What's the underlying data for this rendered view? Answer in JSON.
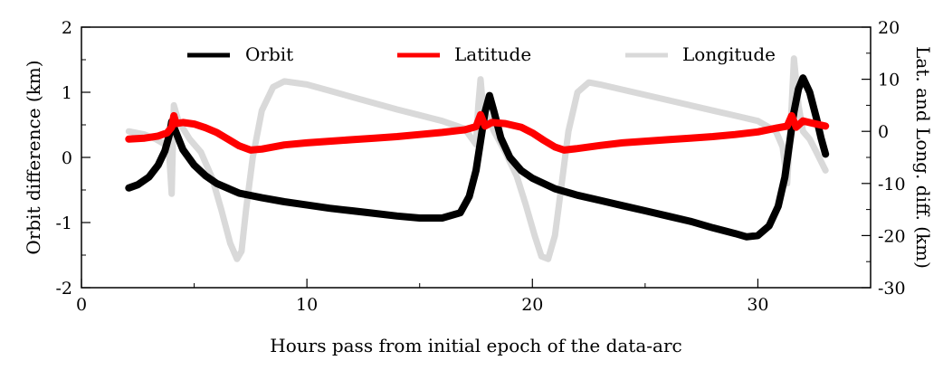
{
  "chart_data": {
    "type": "line",
    "xlabel": "Hours pass from initial epoch of the data-arc",
    "ylabel_left": "Orbit difference (km)",
    "ylabel_right": "Lat. and Long. diff. (km)",
    "xlim": [
      0,
      35
    ],
    "ylim_left": [
      -2,
      2
    ],
    "ylim_right": [
      -30,
      20
    ],
    "x_ticks": [
      0,
      10,
      20,
      30
    ],
    "y_left_ticks": [
      -2,
      -1,
      0,
      1,
      2
    ],
    "y_right_ticks": [
      -30,
      -20,
      -10,
      0,
      10,
      20
    ],
    "legend": [
      "Orbit",
      "Latitude",
      "Longitude"
    ],
    "series": [
      {
        "name": "Orbit",
        "axis": "left",
        "color": "#000000",
        "points": [
          [
            2.1,
            -0.47
          ],
          [
            2.5,
            -0.42
          ],
          [
            3.0,
            -0.3
          ],
          [
            3.4,
            -0.12
          ],
          [
            3.7,
            0.1
          ],
          [
            3.9,
            0.35
          ],
          [
            4.0,
            0.55
          ],
          [
            4.2,
            0.38
          ],
          [
            4.5,
            0.12
          ],
          [
            5.0,
            -0.12
          ],
          [
            5.5,
            -0.28
          ],
          [
            6.0,
            -0.4
          ],
          [
            7.0,
            -0.55
          ],
          [
            8.0,
            -0.62
          ],
          [
            9.0,
            -0.68
          ],
          [
            10.0,
            -0.73
          ],
          [
            11.0,
            -0.78
          ],
          [
            12.0,
            -0.82
          ],
          [
            13.0,
            -0.86
          ],
          [
            14.0,
            -0.9
          ],
          [
            15.0,
            -0.93
          ],
          [
            16.0,
            -0.93
          ],
          [
            16.8,
            -0.85
          ],
          [
            17.2,
            -0.6
          ],
          [
            17.5,
            -0.2
          ],
          [
            17.7,
            0.25
          ],
          [
            17.9,
            0.7
          ],
          [
            18.1,
            0.95
          ],
          [
            18.3,
            0.7
          ],
          [
            18.6,
            0.3
          ],
          [
            19.0,
            0.0
          ],
          [
            19.5,
            -0.2
          ],
          [
            20.0,
            -0.32
          ],
          [
            21.0,
            -0.48
          ],
          [
            22.0,
            -0.58
          ],
          [
            23.0,
            -0.66
          ],
          [
            24.0,
            -0.74
          ],
          [
            25.0,
            -0.82
          ],
          [
            26.0,
            -0.9
          ],
          [
            27.0,
            -0.98
          ],
          [
            28.0,
            -1.08
          ],
          [
            29.0,
            -1.17
          ],
          [
            29.5,
            -1.22
          ],
          [
            30.0,
            -1.2
          ],
          [
            30.5,
            -1.05
          ],
          [
            30.9,
            -0.75
          ],
          [
            31.2,
            -0.3
          ],
          [
            31.4,
            0.2
          ],
          [
            31.6,
            0.7
          ],
          [
            31.8,
            1.05
          ],
          [
            32.0,
            1.22
          ],
          [
            32.3,
            1.0
          ],
          [
            32.6,
            0.6
          ],
          [
            32.8,
            0.3
          ],
          [
            33.0,
            0.05
          ]
        ]
      },
      {
        "name": "Latitude",
        "axis": "right",
        "color": "#ff0000",
        "points": [
          [
            2.1,
            -1.5
          ],
          [
            2.8,
            -1.3
          ],
          [
            3.4,
            -0.9
          ],
          [
            3.8,
            -0.3
          ],
          [
            4.0,
            0.8
          ],
          [
            4.1,
            3.0
          ],
          [
            4.2,
            1.5
          ],
          [
            4.5,
            1.7
          ],
          [
            5.0,
            1.4
          ],
          [
            5.5,
            0.7
          ],
          [
            6.0,
            -0.2
          ],
          [
            6.5,
            -1.5
          ],
          [
            7.0,
            -2.8
          ],
          [
            7.5,
            -3.6
          ],
          [
            8.0,
            -3.4
          ],
          [
            9.0,
            -2.6
          ],
          [
            10.0,
            -2.2
          ],
          [
            11.0,
            -1.9
          ],
          [
            12.0,
            -1.6
          ],
          [
            13.0,
            -1.3
          ],
          [
            14.0,
            -1.0
          ],
          [
            15.0,
            -0.6
          ],
          [
            16.0,
            -0.2
          ],
          [
            17.0,
            0.3
          ],
          [
            17.5,
            0.9
          ],
          [
            17.7,
            3.2
          ],
          [
            17.9,
            1.0
          ],
          [
            18.2,
            1.7
          ],
          [
            18.8,
            1.5
          ],
          [
            19.5,
            0.8
          ],
          [
            20.0,
            -0.3
          ],
          [
            20.5,
            -1.7
          ],
          [
            21.0,
            -3.0
          ],
          [
            21.4,
            -3.6
          ],
          [
            22.0,
            -3.3
          ],
          [
            23.0,
            -2.7
          ],
          [
            24.0,
            -2.2
          ],
          [
            25.0,
            -1.9
          ],
          [
            26.0,
            -1.6
          ],
          [
            27.0,
            -1.3
          ],
          [
            28.0,
            -1.0
          ],
          [
            29.0,
            -0.6
          ],
          [
            30.0,
            -0.1
          ],
          [
            30.8,
            0.6
          ],
          [
            31.3,
            1.0
          ],
          [
            31.5,
            3.0
          ],
          [
            31.7,
            0.8
          ],
          [
            32.0,
            2.0
          ],
          [
            32.5,
            1.5
          ],
          [
            33.0,
            1.0
          ]
        ]
      },
      {
        "name": "Longitude",
        "axis": "right",
        "color": "#d9d9d9",
        "points": [
          [
            2.1,
            0.0
          ],
          [
            2.8,
            -0.6
          ],
          [
            3.3,
            -1.5
          ],
          [
            3.7,
            -2.5
          ],
          [
            3.9,
            -5.0
          ],
          [
            4.0,
            -12.0
          ],
          [
            4.1,
            5.0
          ],
          [
            4.3,
            2.0
          ],
          [
            4.8,
            -1.5
          ],
          [
            5.3,
            -4.0
          ],
          [
            5.8,
            -9.0
          ],
          [
            6.2,
            -15.0
          ],
          [
            6.6,
            -21.5
          ],
          [
            6.9,
            -24.5
          ],
          [
            7.1,
            -23.0
          ],
          [
            7.3,
            -15.0
          ],
          [
            7.6,
            -5.0
          ],
          [
            8.0,
            4.0
          ],
          [
            8.5,
            8.5
          ],
          [
            9.0,
            9.6
          ],
          [
            10.0,
            9.0
          ],
          [
            11.0,
            7.8
          ],
          [
            12.0,
            6.6
          ],
          [
            13.0,
            5.4
          ],
          [
            14.0,
            4.2
          ],
          [
            15.0,
            3.1
          ],
          [
            16.0,
            2.0
          ],
          [
            17.0,
            0.5
          ],
          [
            17.5,
            -2.5
          ],
          [
            17.6,
            5.0
          ],
          [
            17.7,
            10.0
          ],
          [
            17.8,
            5.0
          ],
          [
            18.3,
            0.0
          ],
          [
            18.8,
            -4.0
          ],
          [
            19.3,
            -8.5
          ],
          [
            19.7,
            -14.0
          ],
          [
            20.1,
            -20.0
          ],
          [
            20.4,
            -24.0
          ],
          [
            20.7,
            -24.5
          ],
          [
            21.0,
            -20.0
          ],
          [
            21.3,
            -10.0
          ],
          [
            21.6,
            0.0
          ],
          [
            22.0,
            7.5
          ],
          [
            22.5,
            9.4
          ],
          [
            23.0,
            9.0
          ],
          [
            24.0,
            8.0
          ],
          [
            25.0,
            7.0
          ],
          [
            26.0,
            6.0
          ],
          [
            27.0,
            5.0
          ],
          [
            28.0,
            4.0
          ],
          [
            29.0,
            3.0
          ],
          [
            30.0,
            2.0
          ],
          [
            30.8,
            0.0
          ],
          [
            31.1,
            -3.0
          ],
          [
            31.3,
            -10.0
          ],
          [
            31.5,
            5.0
          ],
          [
            31.6,
            14.0
          ],
          [
            31.8,
            5.0
          ],
          [
            32.0,
            0.0
          ],
          [
            32.3,
            -1.5
          ],
          [
            32.6,
            -4.0
          ],
          [
            33.0,
            -7.5
          ]
        ]
      }
    ]
  }
}
